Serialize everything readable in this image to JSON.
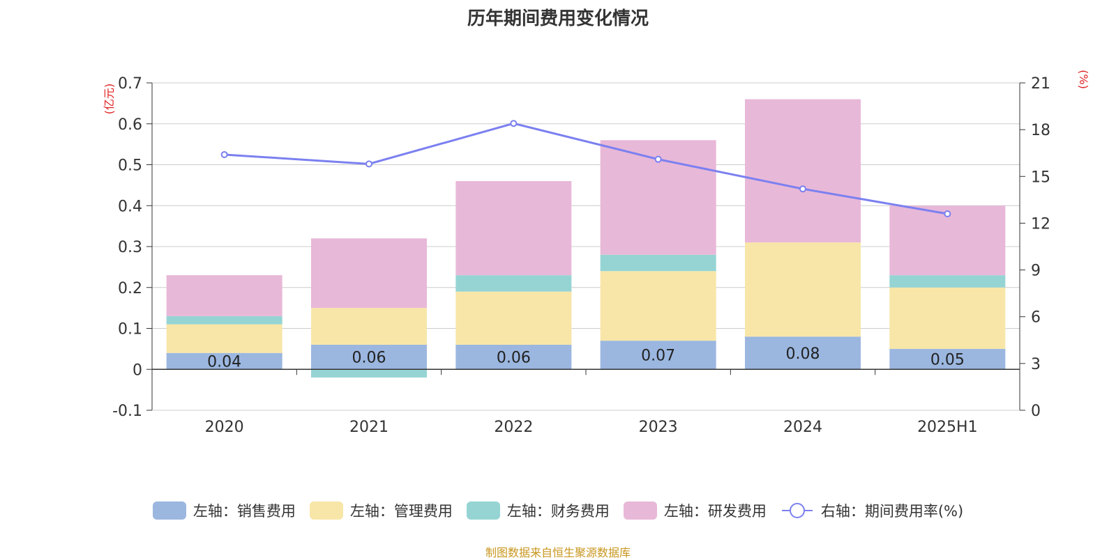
{
  "title": "历年期间费用变化情况",
  "source": "制图数据来自恒生聚源数据库",
  "chart_data": {
    "type": "bar",
    "stacked": true,
    "title": "历年期间费用变化情况",
    "categories": [
      "2020",
      "2021",
      "2022",
      "2023",
      "2024",
      "2025H1"
    ],
    "y_left": {
      "unit": "(亿元)",
      "ylim": [
        -0.1,
        0.7
      ],
      "ticks": [
        "0.7",
        "0.6",
        "0.5",
        "0.4",
        "0.3",
        "0.2",
        "0.1",
        "0",
        "-0.1"
      ],
      "tick_values": [
        0.7,
        0.6,
        0.5,
        0.4,
        0.3,
        0.2,
        0.1,
        0,
        -0.1
      ]
    },
    "y_right": {
      "unit": "(%)",
      "ylim": [
        0,
        21
      ],
      "ticks": [
        "21",
        "18",
        "15",
        "12",
        "9",
        "6",
        "3",
        "0"
      ],
      "tick_values": [
        21,
        18,
        15,
        12,
        9,
        6,
        3,
        0
      ]
    },
    "series": [
      {
        "name": "左轴：销售费用",
        "axis": "left",
        "type": "bar",
        "color": "#9bb7e0",
        "values": [
          0.04,
          0.06,
          0.06,
          0.07,
          0.08,
          0.05
        ],
        "labels": [
          "0.04",
          "0.06",
          "0.06",
          "0.07",
          "0.08",
          "0.05"
        ]
      },
      {
        "name": "左轴：管理费用",
        "axis": "left",
        "type": "bar",
        "color": "#f8e6a8",
        "values": [
          0.07,
          0.09,
          0.13,
          0.17,
          0.23,
          0.15
        ]
      },
      {
        "name": "左轴：财务费用",
        "axis": "left",
        "type": "bar",
        "color": "#96d4d4",
        "values": [
          0.02,
          -0.02,
          0.04,
          0.04,
          0.0,
          0.03
        ]
      },
      {
        "name": "左轴：研发费用",
        "axis": "left",
        "type": "bar",
        "color": "#e8b8d8",
        "values": [
          0.1,
          0.17,
          0.23,
          0.28,
          0.35,
          0.17
        ]
      },
      {
        "name": "右轴：期间费用率(%)",
        "axis": "right",
        "type": "line",
        "color": "#7b80f0",
        "values": [
          16.4,
          15.8,
          18.4,
          16.1,
          14.2,
          12.6
        ]
      }
    ],
    "grid": true,
    "legend": "bottom"
  }
}
